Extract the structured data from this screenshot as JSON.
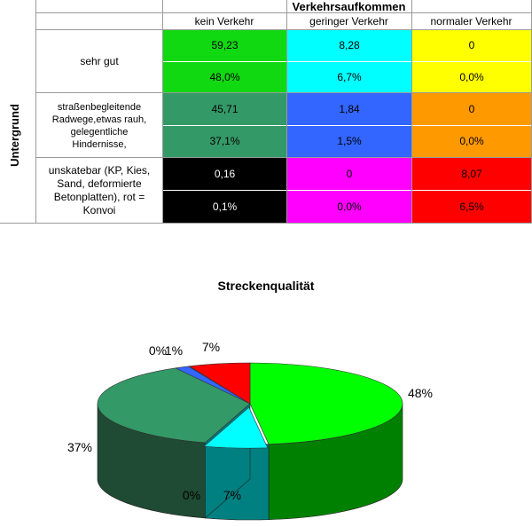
{
  "table": {
    "header_group": "Verkehrsaufkommen",
    "columns": [
      "kein Verkehr",
      "geringer Verkehr",
      "normaler Verkehr"
    ],
    "row_axis_label": "Untergrund",
    "rows": [
      {
        "label": "sehr gut",
        "values": [
          "59,23",
          "8,28",
          "0"
        ],
        "percents": [
          "48,0%",
          "6,7%",
          "0,0%"
        ],
        "colors": [
          "#11d911",
          "#00ffff",
          "#ffff00"
        ]
      },
      {
        "label": "straßenbegleitende Radwege,etwas rauh, gelegentliche Hindernisse,",
        "values": [
          "45,71",
          "1,84",
          "0"
        ],
        "percents": [
          "37,1%",
          "1,5%",
          "0,0%"
        ],
        "colors": [
          "#339966",
          "#3366ff",
          "#ff9900"
        ]
      },
      {
        "label": "unskatebar (KP, Kies, Sand, deformierte Betonplatten), rot = Konvoi",
        "values": [
          "0,16",
          "0",
          "8,07"
        ],
        "percents": [
          "0,1%",
          "0,0%",
          "6,5%"
        ],
        "colors": [
          "#000000",
          "#ff00ff",
          "#ff0000"
        ]
      }
    ]
  },
  "chart_data": {
    "type": "pie",
    "title": "Streckenqualität",
    "slices": [
      {
        "label": "48%",
        "value": 48.0,
        "color": "#00ff00",
        "side_color": "#008000"
      },
      {
        "label": "7%",
        "value": 6.7,
        "color": "#00ffff",
        "side_color": "#008080"
      },
      {
        "label": "0%",
        "value": 0.0,
        "color": "#ffff00",
        "side_color": "#808000"
      },
      {
        "label": "37%",
        "value": 37.1,
        "color": "#339966",
        "side_color": "#1f4a33"
      },
      {
        "label": "1%",
        "value": 1.5,
        "color": "#3366ff",
        "side_color": "#1a337f"
      },
      {
        "label": "0%",
        "value": 0.1,
        "color": "#000000",
        "side_color": "#000000"
      },
      {
        "label": "7%",
        "value": 6.5,
        "color": "#ff0000",
        "side_color": "#800000"
      }
    ]
  }
}
